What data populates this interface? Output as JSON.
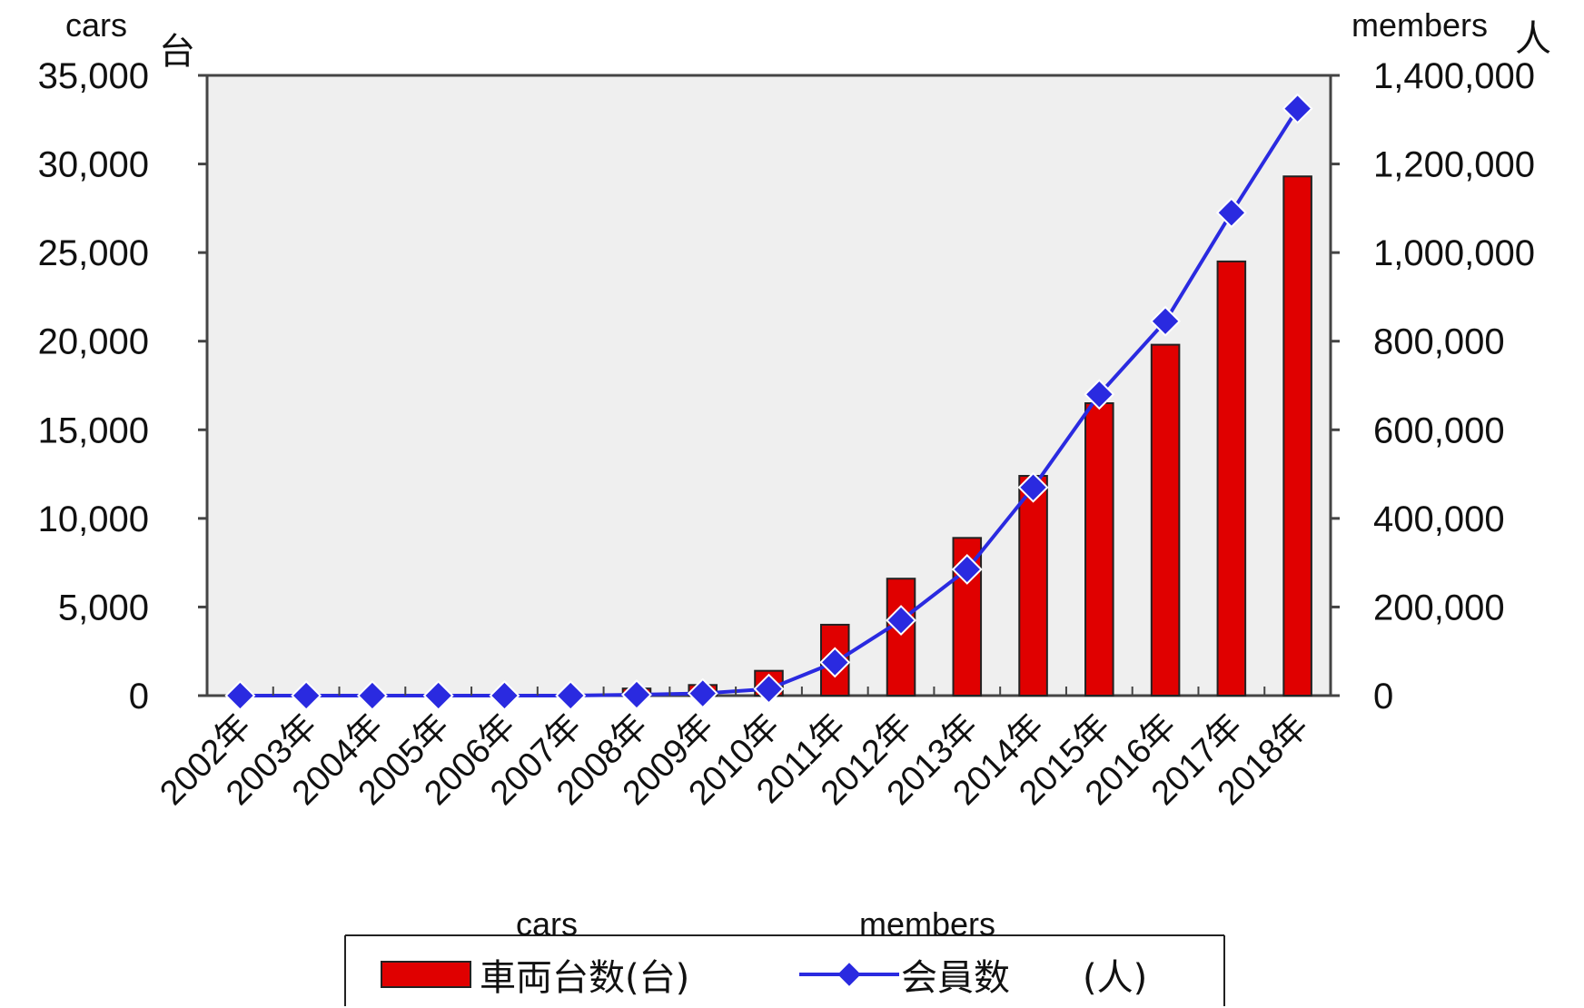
{
  "chart_data": {
    "type": "bar",
    "categories": [
      "2002年",
      "2003年",
      "2004年",
      "2005年",
      "2006年",
      "2007年",
      "2008年",
      "2009年",
      "2010年",
      "2011年",
      "2012年",
      "2013年",
      "2014年",
      "2015年",
      "2016年",
      "2017年",
      "2018年"
    ],
    "series": [
      {
        "name": "車両台数(台)",
        "type": "bar",
        "axis": "left",
        "color": "#e00000",
        "values": [
          0,
          0,
          0,
          0,
          0,
          50,
          400,
          600,
          1400,
          4000,
          6600,
          8900,
          12400,
          16500,
          19800,
          24500,
          29300
        ]
      },
      {
        "name": "会員数　　(人)",
        "type": "line",
        "axis": "right",
        "color": "#2a2ae0",
        "values": [
          0,
          0,
          0,
          0,
          0,
          0,
          2000,
          5000,
          15000,
          75000,
          170000,
          285000,
          470000,
          680000,
          845000,
          1090000,
          1325000
        ]
      }
    ],
    "y_left": {
      "range": [
        0,
        35000
      ],
      "ticks": [
        "0",
        "5,000",
        "10,000",
        "15,000",
        "20,000",
        "25,000",
        "30,000",
        "35,000"
      ],
      "unit": "台"
    },
    "y_right": {
      "range": [
        0,
        1400000
      ],
      "ticks": [
        "0",
        "200,000",
        "400,000",
        "600,000",
        "800,000",
        "1,000,000",
        "1,200,000",
        "1,400,000"
      ],
      "unit": "人"
    },
    "annotations": {
      "left_axis": "cars",
      "right_axis": "members",
      "legend_bar": "cars",
      "legend_line": "members"
    },
    "grid": false,
    "legend_position": "bottom",
    "plot_background": "#efefef"
  }
}
